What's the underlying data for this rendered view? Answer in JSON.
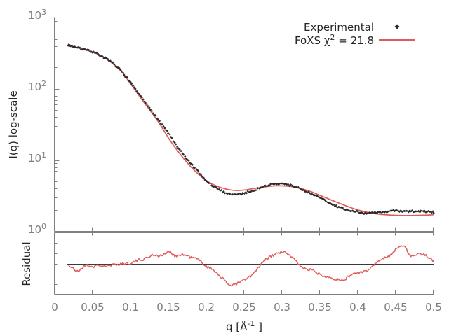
{
  "style": {
    "background": "#ffffff",
    "axis_color": "#808080",
    "tick_label_color": "#7d7d7d",
    "text_color": "#262626",
    "experimental_color": "#2a2a2a",
    "fit_color": "#e05c5c",
    "residual_center_line_color": "#3a3a3a",
    "noise": {
      "scatter_log10": 0.012,
      "residual": 0.028
    }
  },
  "chart_data": {
    "type": "line+scatter",
    "title": "",
    "xlabel": {
      "pre": "q [Å",
      "sup": "-1",
      "post": " ]"
    },
    "xlim": [
      0,
      0.5
    ],
    "grid": false,
    "legend_position": "top-right",
    "x_ticks": {
      "values": [
        0,
        0.05,
        0.1,
        0.15,
        0.2,
        0.25,
        0.3,
        0.35,
        0.4,
        0.45,
        0.5
      ],
      "labels": [
        "0",
        "0.05",
        "0.1",
        "0.15",
        "0.2",
        "0.25",
        "0.3",
        "0.35",
        "0.4",
        "0.45",
        "0.5"
      ]
    },
    "main_panel": {
      "ylabel": "I(q) log-scale",
      "yscale": "log",
      "ylim": [
        1,
        1000
      ],
      "y_ticks": [
        {
          "base": "10",
          "exp": "3",
          "value": 1000
        },
        {
          "base": "10",
          "exp": "2",
          "value": 100
        },
        {
          "base": "10",
          "exp": "1",
          "value": 10
        },
        {
          "base": "10",
          "exp": "0",
          "value": 1
        }
      ]
    },
    "residual_panel": {
      "ylabel": "Residual",
      "yscale": "linear",
      "ylim": [
        0.4,
        1.6
      ],
      "center": 1.0,
      "minor_ticks": [
        0.6,
        0.8,
        1.0,
        1.2,
        1.4
      ]
    },
    "legend": {
      "entries": [
        {
          "label": "Experimental",
          "marker": "diamond"
        },
        {
          "pre": "FoXS χ",
          "sup": "2",
          "post": " = 21.8",
          "marker": "line"
        }
      ]
    },
    "q": [
      0.018,
      0.02,
      0.03,
      0.04,
      0.05,
      0.06,
      0.07,
      0.08,
      0.09,
      0.1,
      0.11,
      0.12,
      0.13,
      0.14,
      0.15,
      0.16,
      0.17,
      0.18,
      0.19,
      0.2,
      0.21,
      0.22,
      0.23,
      0.24,
      0.25,
      0.26,
      0.27,
      0.28,
      0.29,
      0.3,
      0.31,
      0.32,
      0.33,
      0.34,
      0.35,
      0.36,
      0.37,
      0.38,
      0.39,
      0.4,
      0.41,
      0.42,
      0.43,
      0.44,
      0.45,
      0.46,
      0.47,
      0.48,
      0.49,
      0.5
    ],
    "series": [
      {
        "name": "Experimental",
        "type": "scatter",
        "marker": "diamond",
        "values": [
          415,
          408,
          378,
          352,
          330,
          294,
          255,
          212,
          167,
          121,
          87,
          63,
          46.5,
          33,
          24,
          16.3,
          11.8,
          8.8,
          6.7,
          5.1,
          4.25,
          3.7,
          3.4,
          3.3,
          3.45,
          3.7,
          4.0,
          4.4,
          4.6,
          4.65,
          4.45,
          4.15,
          3.7,
          3.3,
          2.95,
          2.6,
          2.3,
          2.08,
          1.95,
          1.88,
          1.8,
          1.8,
          1.85,
          1.9,
          1.93,
          1.9,
          1.91,
          1.91,
          1.89,
          1.86
        ]
      },
      {
        "name": "FoXS fit",
        "type": "line",
        "values": [
          398,
          394,
          376,
          352,
          328,
          295,
          254,
          210,
          165,
          118,
          84,
          60,
          43.5,
          30.5,
          20.5,
          14.5,
          10.6,
          8.0,
          6.3,
          5.15,
          4.5,
          4.1,
          3.85,
          3.75,
          3.8,
          3.95,
          4.1,
          4.25,
          4.35,
          4.35,
          4.28,
          4.1,
          3.85,
          3.55,
          3.2,
          2.9,
          2.62,
          2.38,
          2.17,
          2.0,
          1.88,
          1.79,
          1.73,
          1.7,
          1.68,
          1.67,
          1.67,
          1.68,
          1.69,
          1.71
        ]
      }
    ],
    "residual": {
      "name": "Residual (exp/fit)",
      "values": [
        0.98,
        0.95,
        0.85,
        0.96,
        0.94,
        0.96,
        0.95,
        0.98,
        1.0,
        1.01,
        1.06,
        1.1,
        1.17,
        1.15,
        1.22,
        1.15,
        1.17,
        1.12,
        1.07,
        0.95,
        0.87,
        0.73,
        0.59,
        0.61,
        0.68,
        0.77,
        0.94,
        1.09,
        1.17,
        1.22,
        1.16,
        1.02,
        0.9,
        0.87,
        0.79,
        0.75,
        0.7,
        0.67,
        0.77,
        0.82,
        0.84,
        0.95,
        1.09,
        1.13,
        1.27,
        1.36,
        1.15,
        1.19,
        1.16,
        1.04
      ]
    }
  }
}
